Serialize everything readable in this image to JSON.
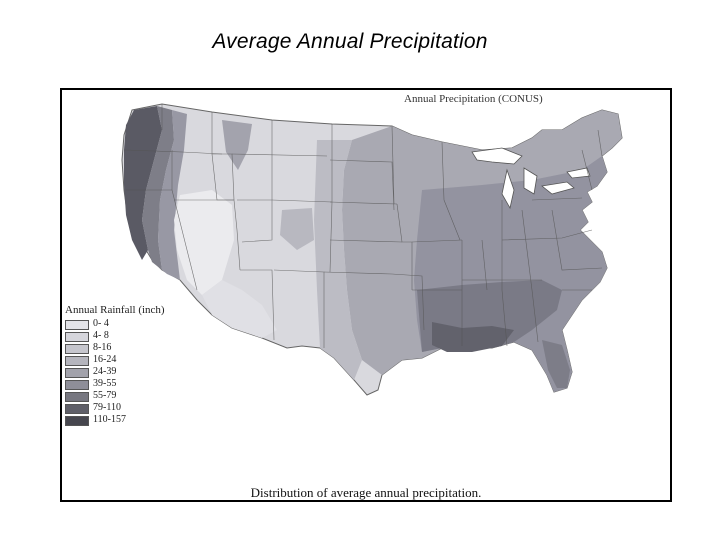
{
  "slide": {
    "title": "Average Annual Precipitation"
  },
  "map": {
    "heading": "Annual Precipitation (CONUS)",
    "caption": "Distribution of average annual precipitation.",
    "legend_title": "Annual Rainfall (inch)",
    "legend": [
      {
        "range": "0- 4",
        "color": "#e4e4e8"
      },
      {
        "range": "4- 8",
        "color": "#d6d6dc"
      },
      {
        "range": "8-16",
        "color": "#c6c6cd"
      },
      {
        "range": "16-24",
        "color": "#b5b5bd"
      },
      {
        "range": "24-39",
        "color": "#a2a2ab"
      },
      {
        "range": "39-55",
        "color": "#8e8e98"
      },
      {
        "range": "55-79",
        "color": "#777780"
      },
      {
        "range": "79-110",
        "color": "#5f5f68"
      },
      {
        "range": "110-157",
        "color": "#46464e"
      }
    ]
  }
}
